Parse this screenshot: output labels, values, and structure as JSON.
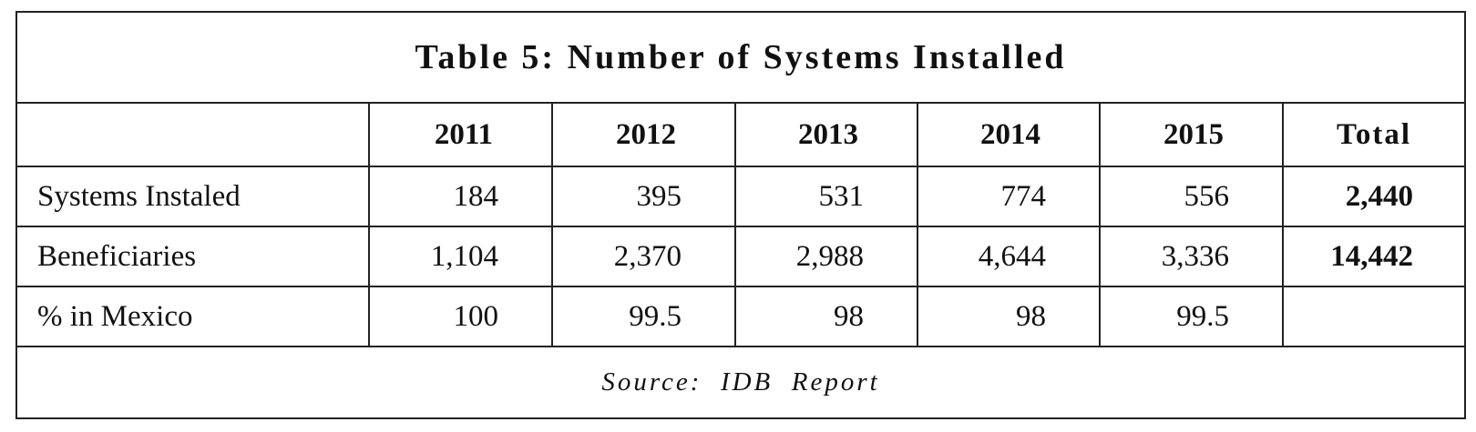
{
  "title": "Table 5: Number of Systems Installed",
  "table": {
    "columns": [
      "2011",
      "2012",
      "2013",
      "2014",
      "2015"
    ],
    "total_header": "Total",
    "rows": [
      {
        "label": "Systems Instaled",
        "values": [
          "184",
          "395",
          "531",
          "774",
          "556"
        ],
        "total": "2,440"
      },
      {
        "label": "Beneficiaries",
        "values": [
          "1,104",
          "2,370",
          "2,988",
          "4,644",
          "3,336"
        ],
        "total": "14,442"
      },
      {
        "label": "% in Mexico",
        "values": [
          "100",
          "99.5",
          "98",
          "98",
          "99.5"
        ]
      }
    ]
  },
  "source": "Source:  IDB  Report"
}
